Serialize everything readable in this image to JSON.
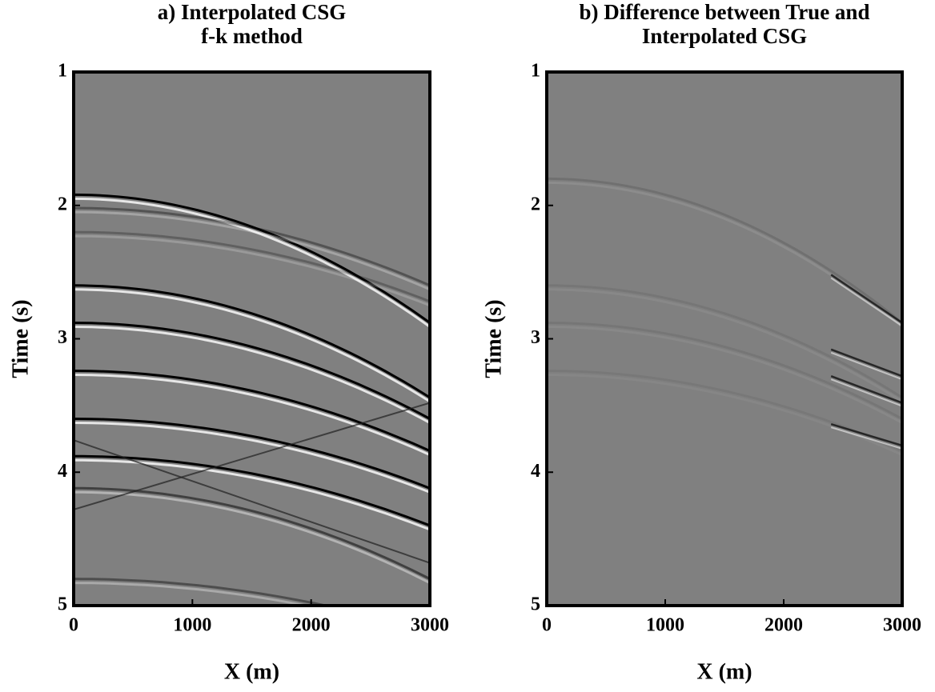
{
  "chart_data": [
    {
      "type": "seismic",
      "title": [
        "a) Interpolated CSG",
        "f-k method"
      ],
      "x_label": "X (m)",
      "y_label": "Time (s)",
      "xlim": [
        0,
        3000
      ],
      "xticks": [
        0,
        1000,
        2000,
        3000
      ],
      "ylim": [
        1,
        5
      ],
      "yticks": [
        1,
        2,
        3,
        4,
        5
      ],
      "y_inverted": true
    },
    {
      "type": "seismic",
      "title": [
        "b) Difference between True and",
        "Interpolated CSG"
      ],
      "x_label": "X (m)",
      "y_label": "Time (s)",
      "xlim": [
        0,
        3000
      ],
      "xticks": [
        0,
        1000,
        2000,
        3000
      ],
      "ylim": [
        1,
        5
      ],
      "yticks": [
        1,
        2,
        3,
        4,
        5
      ],
      "y_inverted": true
    }
  ]
}
